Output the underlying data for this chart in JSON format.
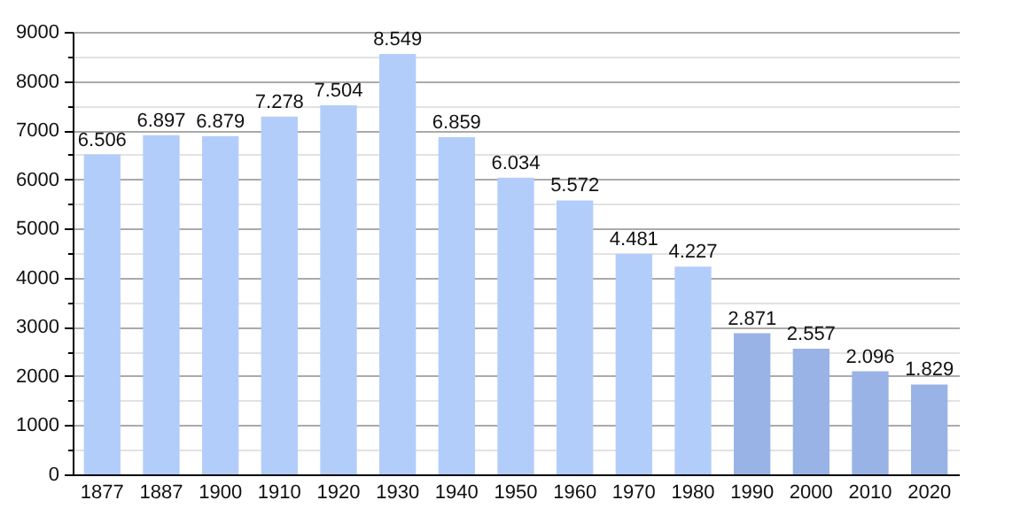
{
  "chart_data": {
    "type": "bar",
    "categories": [
      "1877",
      "1887",
      "1900",
      "1910",
      "1920",
      "1930",
      "1940",
      "1950",
      "1960",
      "1970",
      "1980",
      "1990",
      "2000",
      "2010",
      "2020"
    ],
    "values": [
      6506,
      6897,
      6879,
      7278,
      7504,
      8549,
      6859,
      6034,
      5572,
      4481,
      4227,
      2871,
      2557,
      2096,
      1829
    ],
    "value_labels": [
      "6.506",
      "6.897",
      "6.879",
      "7.278",
      "7.504",
      "8.549",
      "6.859",
      "6.034",
      "5.572",
      "4.481",
      "4.227",
      "2.871",
      "2.557",
      "2.096",
      "1.829"
    ],
    "colors": [
      "#b3cdfb",
      "#b3cdfb",
      "#b3cdfb",
      "#b3cdfb",
      "#b3cdfb",
      "#b3cdfb",
      "#b3cdfb",
      "#b3cdfb",
      "#b3cdfb",
      "#b3cdfb",
      "#b3cdfb",
      "#9ab3e6",
      "#9ab3e6",
      "#9ab3e6",
      "#9ab3e6"
    ],
    "ylim": [
      0,
      9000
    ],
    "yticks": [
      0,
      {
        "value": 500,
        "label": null
      },
      1000,
      {
        "value": 1500,
        "label": null
      },
      2000,
      {
        "value": 2500,
        "label": null
      },
      3000,
      {
        "value": 3500,
        "label": null
      },
      4000,
      {
        "value": 4500,
        "label": null
      },
      5000,
      {
        "value": 5500,
        "label": null
      },
      6000,
      {
        "value": 6500,
        "label": null
      },
      7000,
      {
        "value": 7500,
        "label": null
      },
      8000,
      {
        "value": 8500,
        "label": null
      },
      9000
    ],
    "grid": true
  }
}
